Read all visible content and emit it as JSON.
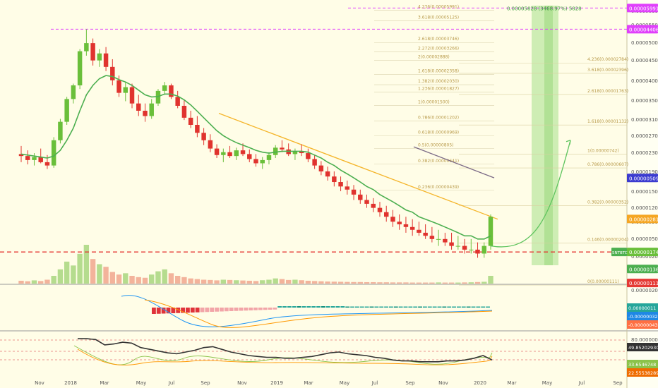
{
  "colors": {
    "background": "#fffde7",
    "up_candle": "#6abf3a",
    "down_candle": "#e0332e",
    "ema": "#4caf50",
    "trendline": "#f5b52b",
    "magenta_level": "#e040fb",
    "red_level": "#e53935",
    "macd_line": "#2196f3",
    "signal_line": "#ff9800",
    "rsi_line": "#333333",
    "projection": "#5ec45e",
    "target_zone": "#a5e08b"
  },
  "chart_data": {
    "type": "candlestick",
    "symbol_tag": "SNTBTC",
    "x_labels": [
      "Nov",
      "2018",
      "Mar",
      "May",
      "Jul",
      "Sep",
      "Nov",
      "2019",
      "Mar",
      "May",
      "Jul",
      "Sep",
      "Nov",
      "2020",
      "Mar",
      "May",
      "Jul",
      "Sep"
    ],
    "y_labels": [
      "0.00006000",
      "0.00005500",
      "0.00005000",
      "0.00004500",
      "0.00004000",
      "0.00003500",
      "0.00003100",
      "0.00002700",
      "0.00002300",
      "0.00001900",
      "0.00001500",
      "0.00001200",
      "0.00000900",
      "0.00000500",
      "0.00000200"
    ],
    "price_scale": "log",
    "ylim": [
      1.1e-06,
      6.2e-05
    ],
    "candles": [
      {
        "o": 7.2e-06,
        "h": 8.1e-06,
        "l": 6.4e-06,
        "c": 7e-06
      },
      {
        "o": 7e-06,
        "h": 7.6e-06,
        "l": 6.2e-06,
        "c": 6.6e-06
      },
      {
        "o": 6.6e-06,
        "h": 7.3e-06,
        "l": 6.1e-06,
        "c": 6.9e-06
      },
      {
        "o": 6.9e-06,
        "h": 7.8e-06,
        "l": 6.3e-06,
        "c": 6.4e-06
      },
      {
        "o": 6.4e-06,
        "h": 7.1e-06,
        "l": 5.8e-06,
        "c": 6.1e-06
      },
      {
        "o": 6.1e-06,
        "h": 9.2e-06,
        "l": 5.9e-06,
        "c": 8.8e-06
      },
      {
        "o": 8.8e-06,
        "h": 1.2e-05,
        "l": 8.4e-06,
        "c": 1.15e-05
      },
      {
        "o": 1.15e-05,
        "h": 1.65e-05,
        "l": 1.1e-05,
        "c": 1.6e-05
      },
      {
        "o": 1.6e-05,
        "h": 2e-05,
        "l": 1.5e-05,
        "c": 1.95e-05
      },
      {
        "o": 1.95e-05,
        "h": 3.3e-05,
        "l": 1.85e-05,
        "c": 3.2e-05
      },
      {
        "o": 3.2e-05,
        "h": 4.4e-05,
        "l": 3e-05,
        "c": 3.6e-05
      },
      {
        "o": 3.6e-05,
        "h": 3.85e-05,
        "l": 2.6e-05,
        "c": 2.8e-05
      },
      {
        "o": 2.8e-05,
        "h": 3.3e-05,
        "l": 2.55e-05,
        "c": 3.1e-05
      },
      {
        "o": 3.1e-05,
        "h": 3.4e-05,
        "l": 2.4e-05,
        "c": 2.55e-05
      },
      {
        "o": 2.55e-05,
        "h": 2.85e-05,
        "l": 1.95e-05,
        "c": 2.1e-05
      },
      {
        "o": 2.1e-05,
        "h": 2.25e-05,
        "l": 1.65e-05,
        "c": 1.75e-05
      },
      {
        "o": 1.75e-05,
        "h": 2.05e-05,
        "l": 1.55e-05,
        "c": 1.9e-05
      },
      {
        "o": 1.9e-05,
        "h": 2e-05,
        "l": 1.4e-05,
        "c": 1.5e-05
      },
      {
        "o": 1.5e-05,
        "h": 1.7e-05,
        "l": 1.25e-05,
        "c": 1.35e-05
      },
      {
        "o": 1.35e-05,
        "h": 1.5e-05,
        "l": 1.15e-05,
        "c": 1.25e-05
      },
      {
        "o": 1.25e-05,
        "h": 1.6e-05,
        "l": 1.2e-05,
        "c": 1.5e-05
      },
      {
        "o": 1.5e-05,
        "h": 1.85e-05,
        "l": 1.45e-05,
        "c": 1.8e-05
      },
      {
        "o": 1.8e-05,
        "h": 2.05e-05,
        "l": 1.7e-05,
        "c": 1.95e-05
      },
      {
        "o": 1.95e-05,
        "h": 2e-05,
        "l": 1.6e-05,
        "c": 1.65e-05
      },
      {
        "o": 1.65e-05,
        "h": 1.8e-05,
        "l": 1.4e-05,
        "c": 1.45e-05
      },
      {
        "o": 1.45e-05,
        "h": 1.58e-05,
        "l": 1.18e-05,
        "c": 1.22e-05
      },
      {
        "o": 1.22e-05,
        "h": 1.35e-05,
        "l": 1.05e-05,
        "c": 1.1e-05
      },
      {
        "o": 1.1e-05,
        "h": 1.25e-05,
        "l": 9.2e-06,
        "c": 9.8e-06
      },
      {
        "o": 9.8e-06,
        "h": 1.05e-05,
        "l": 8.2e-06,
        "c": 8.8e-06
      },
      {
        "o": 8.8e-06,
        "h": 9.6e-06,
        "l": 7.4e-06,
        "c": 7.8e-06
      },
      {
        "o": 7.8e-06,
        "h": 8.3e-06,
        "l": 6.8e-06,
        "c": 7.1e-06
      },
      {
        "o": 7.1e-06,
        "h": 7.8e-06,
        "l": 6.4e-06,
        "c": 7.4e-06
      },
      {
        "o": 7.4e-06,
        "h": 8.1e-06,
        "l": 6.8e-06,
        "c": 7e-06
      },
      {
        "o": 7e-06,
        "h": 7.9e-06,
        "l": 6.6e-06,
        "c": 7.6e-06
      },
      {
        "o": 7.6e-06,
        "h": 8.4e-06,
        "l": 7e-06,
        "c": 7.2e-06
      },
      {
        "o": 7.2e-06,
        "h": 7.7e-06,
        "l": 6.4e-06,
        "c": 6.7e-06
      },
      {
        "o": 6.7e-06,
        "h": 7.2e-06,
        "l": 6e-06,
        "c": 6.3e-06
      },
      {
        "o": 6.3e-06,
        "h": 6.9e-06,
        "l": 5.8e-06,
        "c": 6.6e-06
      },
      {
        "o": 6.6e-06,
        "h": 7.4e-06,
        "l": 6.2e-06,
        "c": 7.1e-06
      },
      {
        "o": 7.1e-06,
        "h": 8.2e-06,
        "l": 6.8e-06,
        "c": 7.9e-06
      },
      {
        "o": 7.9e-06,
        "h": 8.8e-06,
        "l": 7.4e-06,
        "c": 7.7e-06
      },
      {
        "o": 7.7e-06,
        "h": 8.4e-06,
        "l": 7e-06,
        "c": 7.2e-06
      },
      {
        "o": 7.2e-06,
        "h": 7.8e-06,
        "l": 6.6e-06,
        "c": 7.5e-06
      },
      {
        "o": 7.5e-06,
        "h": 8.3e-06,
        "l": 7e-06,
        "c": 7.3e-06
      },
      {
        "o": 7.3e-06,
        "h": 7.8e-06,
        "l": 6.4e-06,
        "c": 6.7e-06
      },
      {
        "o": 6.7e-06,
        "h": 7.1e-06,
        "l": 5.8e-06,
        "c": 6.1e-06
      },
      {
        "o": 6.1e-06,
        "h": 6.5e-06,
        "l": 5.3e-06,
        "c": 5.6e-06
      },
      {
        "o": 5.6e-06,
        "h": 6e-06,
        "l": 4.9e-06,
        "c": 5.2e-06
      },
      {
        "o": 5.2e-06,
        "h": 5.6e-06,
        "l": 4.5e-06,
        "c": 4.8e-06
      },
      {
        "o": 4.8e-06,
        "h": 5.2e-06,
        "l": 4.2e-06,
        "c": 4.5e-06
      },
      {
        "o": 4.5e-06,
        "h": 4.9e-06,
        "l": 4e-06,
        "c": 4.3e-06
      },
      {
        "o": 4.3e-06,
        "h": 4.6e-06,
        "l": 3.7e-06,
        "c": 4e-06
      },
      {
        "o": 4e-06,
        "h": 4.3e-06,
        "l": 3.5e-06,
        "c": 3.7e-06
      },
      {
        "o": 3.7e-06,
        "h": 4e-06,
        "l": 3.3e-06,
        "c": 3.5e-06
      },
      {
        "o": 3.5e-06,
        "h": 3.8e-06,
        "l": 3.1e-06,
        "c": 3.3e-06
      },
      {
        "o": 3.3e-06,
        "h": 3.6e-06,
        "l": 2.9e-06,
        "c": 3.1e-06
      },
      {
        "o": 3.1e-06,
        "h": 3.4e-06,
        "l": 2.7e-06,
        "c": 2.9e-06
      },
      {
        "o": 2.9e-06,
        "h": 3.2e-06,
        "l": 2.5e-06,
        "c": 2.7e-06
      },
      {
        "o": 2.7e-06,
        "h": 3e-06,
        "l": 2.4e-06,
        "c": 2.6e-06
      },
      {
        "o": 2.6e-06,
        "h": 2.9e-06,
        "l": 2.3e-06,
        "c": 2.5e-06
      },
      {
        "o": 2.5e-06,
        "h": 2.8e-06,
        "l": 2.2e-06,
        "c": 2.4e-06
      },
      {
        "o": 2.4e-06,
        "h": 2.7e-06,
        "l": 2.2e-06,
        "c": 2.3e-06
      },
      {
        "o": 2.3e-06,
        "h": 2.6e-06,
        "l": 2.1e-06,
        "c": 2.2e-06
      },
      {
        "o": 2.2e-06,
        "h": 2.5e-06,
        "l": 2e-06,
        "c": 2.1e-06
      },
      {
        "o": 2.1e-06,
        "h": 2.4e-06,
        "l": 1.9e-06,
        "c": 2.1e-06
      },
      {
        "o": 2.1e-06,
        "h": 2.3e-06,
        "l": 1.9e-06,
        "c": 2e-06
      },
      {
        "o": 2e-06,
        "h": 2.3e-06,
        "l": 1.8e-06,
        "c": 1.9e-06
      },
      {
        "o": 1.9e-06,
        "h": 2.2e-06,
        "l": 1.8e-06,
        "c": 1.9e-06
      },
      {
        "o": 1.9e-06,
        "h": 2.1e-06,
        "l": 1.7e-06,
        "c": 1.8e-06
      },
      {
        "o": 1.8e-06,
        "h": 2.1e-06,
        "l": 1.7e-06,
        "c": 1.8e-06
      },
      {
        "o": 1.8e-06,
        "h": 2e-06,
        "l": 1.6e-06,
        "c": 1.7e-06
      },
      {
        "o": 1.7e-06,
        "h": 2e-06,
        "l": 1.6e-06,
        "c": 1.9e-06
      },
      {
        "o": 1.9e-06,
        "h": 3e-06,
        "l": 1.8e-06,
        "c": 2.9e-06
      }
    ],
    "ema": [
      7.2e-06,
      7.1e-06,
      7e-06,
      6.9e-06,
      6.8e-06,
      7e-06,
      7.6e-06,
      8.8e-06,
      1.05e-05,
      1.35e-05,
      1.7e-05,
      1.95e-05,
      2.15e-05,
      2.25e-05,
      2.22e-05,
      2.12e-05,
      2.05e-05,
      1.95e-05,
      1.82e-05,
      1.7e-05,
      1.65e-05,
      1.66e-05,
      1.72e-05,
      1.72e-05,
      1.67e-05,
      1.58e-05,
      1.47e-05,
      1.34e-05,
      1.22e-05,
      1.11e-05,
      1.01e-05,
      9.4e-06,
      8.9e-06,
      8.5e-06,
      8.2e-06,
      7.9e-06,
      7.6e-06,
      7.4e-06,
      7.3e-06,
      7.4e-06,
      7.5e-06,
      7.5e-06,
      7.5e-06,
      7.5e-06,
      7.4e-06,
      7.1e-06,
      6.8e-06,
      6.4e-06,
      6.1e-06,
      5.7e-06,
      5.4e-06,
      5.1e-06,
      4.8e-06,
      4.5e-06,
      4.3e-06,
      4e-06,
      3.8e-06,
      3.6e-06,
      3.4e-06,
      3.2e-06,
      3.1e-06,
      2.9e-06,
      2.8e-06,
      2.7e-06,
      2.6e-06,
      2.5e-06,
      2.4e-06,
      2.3e-06,
      2.2e-06,
      2.2e-06,
      2.1e-06,
      2.1e-06,
      2.2e-06
    ],
    "volume": [
      22,
      18,
      25,
      20,
      30,
      60,
      110,
      170,
      140,
      230,
      300,
      190,
      150,
      130,
      90,
      70,
      80,
      60,
      50,
      45,
      70,
      95,
      110,
      80,
      60,
      50,
      40,
      35,
      30,
      28,
      25,
      30,
      28,
      26,
      24,
      22,
      20,
      26,
      30,
      40,
      35,
      28,
      30,
      26,
      22,
      20,
      18,
      16,
      15,
      14,
      13,
      12,
      12,
      11,
      11,
      10,
      10,
      9,
      9,
      9,
      8,
      8,
      8,
      8,
      9,
      8,
      8,
      8,
      9,
      10,
      12,
      14,
      60
    ],
    "annotations": [
      {
        "label": "4.236(0.00005991)",
        "y": 5.991e-05
      },
      {
        "label": "3.618(0.00005125)",
        "y": 5.125e-05
      },
      {
        "label": "2.618(0.00003746)",
        "y": 3.746e-05
      },
      {
        "label": "2.272(0.00003266)",
        "y": 3.266e-05
      },
      {
        "label": "2(0.00002888)",
        "y": 2.888e-05
      },
      {
        "label": "1.618(0.00002358)",
        "y": 2.358e-05
      },
      {
        "label": "1.382(0.00002030)",
        "y": 2.03e-05
      },
      {
        "label": "1.236(0.00001827)",
        "y": 1.827e-05
      },
      {
        "label": "1(0.00001500)",
        "y": 1.5e-05
      },
      {
        "label": "0.786(0.00001202)",
        "y": 1.202e-05
      },
      {
        "label": "0.618(0.00000969)",
        "y": 9.69e-06
      },
      {
        "label": "0.5(0.00000805)",
        "y": 8.05e-06
      },
      {
        "label": "0.382(0.00000641)",
        "y": 6.41e-06
      },
      {
        "label": "0.236(0.00000439)",
        "y": 4.39e-06
      }
    ],
    "right_fibs": [
      {
        "label": "4.236(0.00002784)",
        "y": 2.784e-05
      },
      {
        "label": "3.618(0.00002396)",
        "y": 2.396e-05
      },
      {
        "label": "2.618(0.00001763)",
        "y": 1.763e-05
      },
      {
        "label": "1.618(0.00001132)",
        "y": 1.132e-05
      },
      {
        "label": "1(0.00000742)",
        "y": 7.42e-06
      },
      {
        "label": "0.786(0.00000607)",
        "y": 6.07e-06
      },
      {
        "label": "0.382(0.00000352)",
        "y": 3.52e-06
      },
      {
        "label": "0.146(0.00000204)",
        "y": 2.04e-06
      },
      {
        "label": "0(0.00000111)",
        "y": 1.11e-06
      }
    ],
    "price_tags": [
      {
        "label": "0.00005991",
        "y": 5.991e-05,
        "color": "#e040fb"
      },
      {
        "label": "0.00004406",
        "y": 4.406e-05,
        "color": "#e040fb"
      },
      {
        "label": "0.00000509",
        "y": 5.09e-06,
        "color": "#3b3bd0"
      },
      {
        "label": "0.00000281",
        "y": 2.81e-06,
        "color": "#f5a623"
      },
      {
        "label": "0.00000174",
        "y": 1.74e-06,
        "color": "#6abf3a"
      },
      {
        "label": "0.00000136",
        "y": 1.36e-06,
        "color": "#4caf50"
      },
      {
        "label": "0.00000111",
        "y": 1.11e-06,
        "color": "#e53935"
      }
    ],
    "target_label": "0.00005828 (3468.97%) 5828",
    "macd": {
      "y_label": "0.00000200",
      "tags": [
        {
          "label": "0.00000011",
          "color": "#26a69a"
        },
        {
          "label": "-0.00000032",
          "color": "#1e88e5"
        },
        {
          "label": "-0.00000043",
          "color": "#ff7043"
        }
      ]
    },
    "rsi": {
      "y_label": "80.00000000",
      "tags": [
        {
          "label": "49.85202930",
          "color": "#333333"
        },
        {
          "label": "33.6546748",
          "color": "#8bc34a"
        },
        {
          "label": "22.55538289",
          "color": "#ef6c00"
        }
      ],
      "values": [
        62,
        62,
        61,
        55,
        56,
        58,
        57,
        52,
        50,
        48,
        46,
        45,
        47,
        49,
        52,
        53,
        50,
        47,
        45,
        43,
        42,
        41,
        41,
        40,
        40,
        41,
        42,
        44,
        46,
        47,
        45,
        44,
        43,
        41,
        40,
        38,
        37,
        37,
        36,
        36,
        36,
        37,
        37,
        38,
        40,
        43,
        38
      ]
    }
  }
}
